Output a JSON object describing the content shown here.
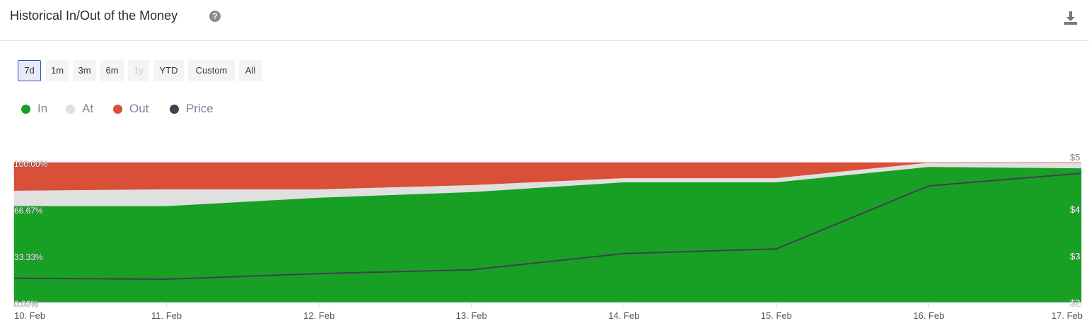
{
  "header": {
    "title": "Historical In/Out of the Money",
    "help_icon": "question-circle-icon",
    "download_icon": "download-icon"
  },
  "range_buttons": [
    {
      "label": "7d",
      "state": "selected"
    },
    {
      "label": "1m",
      "state": "normal"
    },
    {
      "label": "3m",
      "state": "normal"
    },
    {
      "label": "6m",
      "state": "normal"
    },
    {
      "label": "1y",
      "state": "disabled"
    },
    {
      "label": "YTD",
      "state": "normal"
    },
    {
      "label": "Custom",
      "state": "normal"
    },
    {
      "label": "All",
      "state": "normal"
    }
  ],
  "legend": [
    {
      "label": "In",
      "color": "#18a025"
    },
    {
      "label": "At",
      "color": "#e0e0e0"
    },
    {
      "label": "Out",
      "color": "#d94f38"
    },
    {
      "label": "Price",
      "color": "#3d4350"
    }
  ],
  "chart_data": {
    "type": "area",
    "stacked": true,
    "normalized": true,
    "categories": [
      "10. Feb",
      "11. Feb",
      "12. Feb",
      "13. Feb",
      "14. Feb",
      "15. Feb",
      "16. Feb",
      "17. Feb"
    ],
    "series": [
      {
        "name": "In",
        "color": "#18a025",
        "values": [
          69,
          69,
          75,
          79,
          86,
          86,
          97,
          96
        ]
      },
      {
        "name": "At",
        "color": "#e0e0e0",
        "values": [
          11,
          12,
          6,
          5,
          3,
          3,
          3,
          4
        ]
      },
      {
        "name": "Out",
        "color": "#d94f38",
        "values": [
          20,
          19,
          19,
          16,
          11,
          11,
          0,
          0
        ]
      },
      {
        "name": "Price",
        "color": "#3d4350",
        "type": "line",
        "axis": "right",
        "values": [
          2.52,
          2.5,
          2.62,
          2.7,
          3.05,
          3.15,
          4.5,
          4.77
        ]
      }
    ],
    "y_axis_left": {
      "ticks": [
        "0.00%",
        "33.33%",
        "66.67%",
        "100.00%"
      ],
      "ylim": [
        0,
        100
      ]
    },
    "y_axis_right": {
      "ticks": [
        "$2",
        "$3",
        "$4",
        "$5"
      ],
      "ylim": [
        2,
        5
      ]
    },
    "legend_position": "top-left",
    "grid": false
  }
}
